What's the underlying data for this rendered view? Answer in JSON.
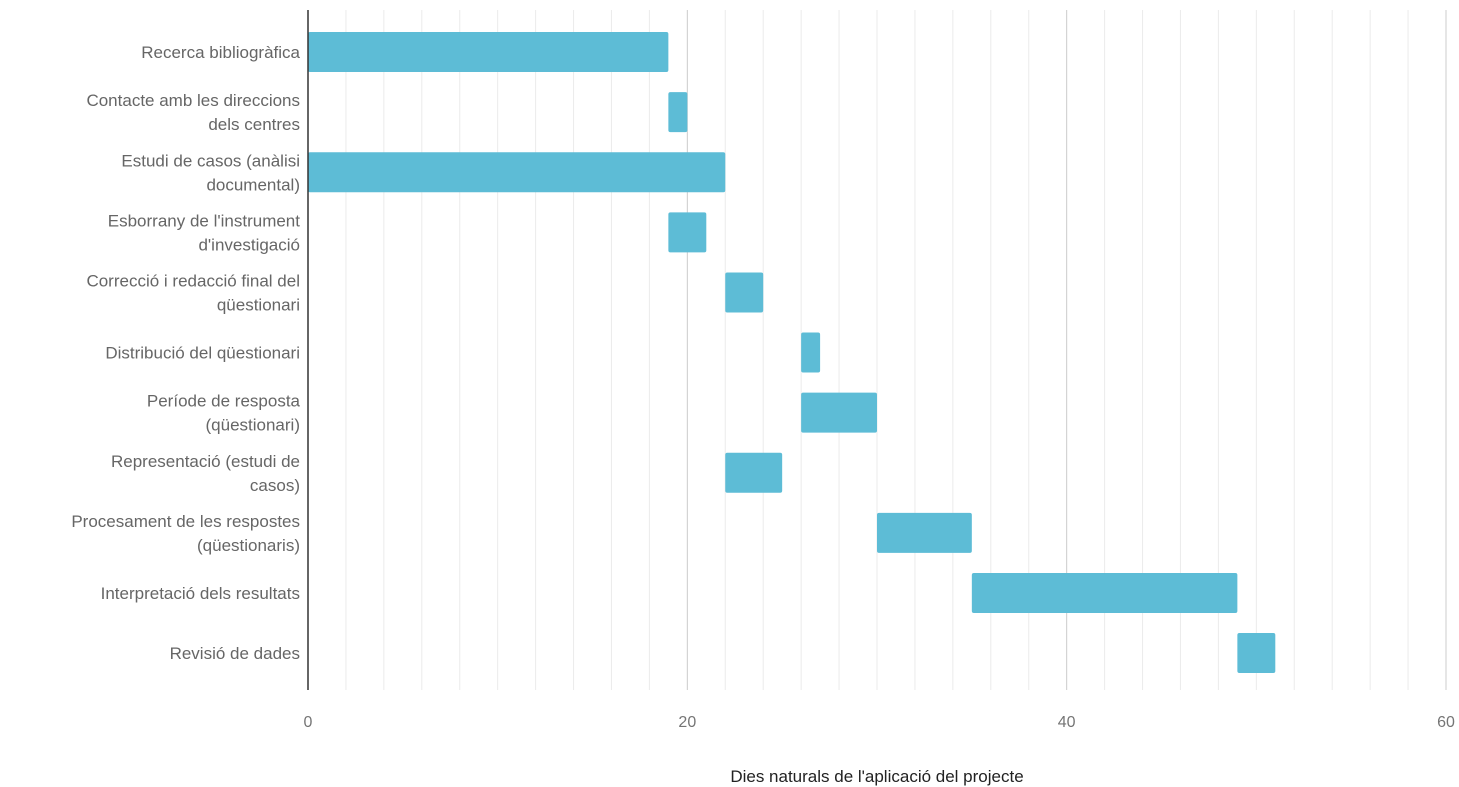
{
  "chart_data": {
    "type": "bar",
    "orientation": "horizontal",
    "subtype": "gantt",
    "categories": [
      [
        "Recerca bibliogràfica"
      ],
      [
        "Contacte amb les direccions",
        "dels centres"
      ],
      [
        "Estudi de casos (anàlisi",
        "documental)"
      ],
      [
        "Esborrany de l'instrument",
        "d'investigació"
      ],
      [
        "Correcció i redacció final del",
        "qüestionari"
      ],
      [
        "Distribució del qüestionari"
      ],
      [
        "Període de resposta",
        "(qüestionari)"
      ],
      [
        "Representació  (estudi de",
        "casos)"
      ],
      [
        "Procesament de les respostes",
        "(qüestionaris)"
      ],
      [
        "Interpretació dels resultats"
      ],
      [
        "Revisió de dades"
      ]
    ],
    "series": [
      {
        "start": [
          0,
          19,
          0,
          19,
          22,
          26,
          26,
          22,
          30,
          35,
          49
        ],
        "end": [
          19,
          20,
          22,
          21,
          24,
          27,
          30,
          25,
          35,
          49,
          51
        ]
      }
    ],
    "xlim": [
      0,
      60
    ],
    "x_ticks": [
      0,
      20,
      40,
      60
    ],
    "x_tick_labels": [
      "0",
      "20",
      "40",
      "60"
    ],
    "minor_grid_step": 2,
    "xlabel": "Dies naturals de l'aplicació del projecte",
    "ylabel": "",
    "title": "",
    "legend": "none",
    "grid": true,
    "colors": {
      "bar": "#5dbcd6",
      "major_grid": "#cccccc",
      "minor_grid": "#ebebeb",
      "axis": "#333333",
      "category_text": "#666666",
      "tick_text": "#757575",
      "axis_title_text": "#222222"
    }
  }
}
